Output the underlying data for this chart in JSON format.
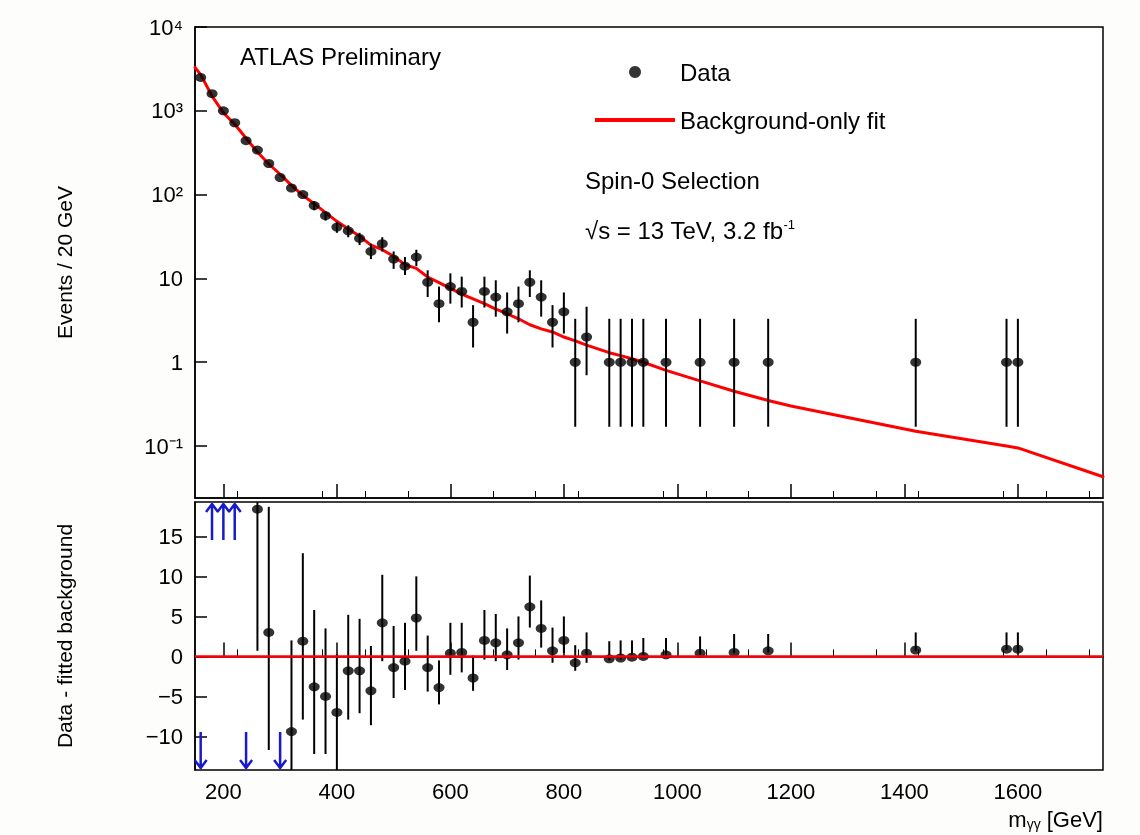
{
  "chart_data": [
    {
      "type": "scatter",
      "ylabel": "Events / 20 GeV",
      "xlim": [
        150,
        1750
      ],
      "xticks": [
        200,
        400,
        600,
        800,
        1000,
        1200,
        1400,
        1600
      ],
      "ylim": [
        0.024,
        10000
      ],
      "yticks": [
        {
          "value": 0.1,
          "label": "10⁻¹"
        },
        1,
        10,
        {
          "value": 100,
          "label": "10²"
        },
        {
          "value": 1000,
          "label": "10³"
        },
        {
          "value": 10000,
          "label": "10⁴"
        }
      ],
      "log": "y",
      "tick_labels": "y",
      "grid": false,
      "legend": "top right",
      "annotations": [
        "ATLAS Preliminary",
        "Spin-0 Selection",
        "√s = 13 TeV, 3.2 fb$^{-1}$"
      ],
      "series": [
        {
          "name": "Data",
          "type": "scatter",
          "color": "#000000",
          "x": [
            160,
            180,
            200,
            220,
            240,
            260,
            280,
            300,
            320,
            340,
            360,
            380,
            400,
            420,
            440,
            460,
            480,
            500,
            520,
            540,
            560,
            580,
            600,
            620,
            640,
            660,
            680,
            700,
            720,
            740,
            760,
            780,
            800,
            820,
            840,
            880,
            900,
            920,
            940,
            980,
            1040,
            1100,
            1160,
            1420,
            1580,
            1600
          ],
          "values": [
            2500,
            1600,
            1000,
            720,
            440,
            340,
            235,
            160,
            120,
            100,
            74,
            56,
            41,
            37,
            30,
            21,
            26,
            17,
            14,
            18,
            9,
            5,
            8,
            7,
            3,
            7,
            6,
            4,
            5,
            9,
            6,
            3,
            4,
            1,
            2,
            1,
            1,
            1,
            1,
            1,
            1,
            1,
            1,
            1,
            1,
            1
          ],
          "errors": [
            null,
            null,
            null,
            null,
            null,
            null,
            null,
            null,
            null,
            null,
            [
              65,
              83
            ],
            [
              49,
              63
            ],
            [
              35,
              47
            ],
            [
              31,
              43
            ],
            [
              25,
              35
            ],
            [
              17,
              26
            ],
            [
              21,
              31
            ],
            [
              13,
              21
            ],
            [
              11,
              18
            ],
            [
              14,
              22
            ],
            [
              6,
              12.5
            ],
            [
              3,
              8
            ],
            [
              5,
              11.5
            ],
            [
              4.5,
              10.5
            ],
            [
              1.5,
              4.8
            ],
            [
              4.5,
              10.5
            ],
            [
              3.5,
              9.5
            ],
            [
              2.2,
              6.8
            ],
            [
              3,
              8
            ],
            [
              6,
              12.5
            ],
            [
              3.5,
              9.5
            ],
            [
              1.5,
              4.8
            ],
            [
              2.2,
              6.8
            ],
            [
              0.17,
              3.3
            ],
            [
              0.7,
              4.6
            ],
            [
              0.17,
              3.3
            ],
            [
              0.17,
              3.3
            ],
            [
              0.17,
              3.3
            ],
            [
              0.17,
              3.3
            ],
            [
              0.17,
              3.3
            ],
            [
              0.17,
              3.3
            ],
            [
              0.17,
              3.3
            ],
            [
              0.17,
              3.3
            ],
            [
              0.17,
              3.3
            ],
            [
              0.17,
              3.3
            ],
            [
              0.17,
              3.3
            ]
          ]
        },
        {
          "name": "Background-only fit",
          "type": "line",
          "color": "#ff0000",
          "x": [
            150,
            160,
            180,
            200,
            220,
            240,
            260,
            280,
            300,
            320,
            340,
            360,
            380,
            400,
            420,
            440,
            460,
            480,
            500,
            520,
            540,
            560,
            580,
            600,
            620,
            640,
            660,
            680,
            700,
            720,
            740,
            760,
            780,
            800,
            820,
            840,
            880,
            900,
            920,
            940,
            980,
            1040,
            1100,
            1160,
            1200,
            1420,
            1580,
            1600,
            1750
          ],
          "values": [
            3300,
            2700,
            1500,
            950,
            690,
            470,
            322,
            232,
            175,
            129,
            98,
            78,
            61,
            48,
            39,
            32,
            25,
            22,
            18.4,
            14.6,
            13.2,
            10.4,
            8.9,
            7.6,
            6.5,
            5.7,
            5.0,
            4.3,
            3.8,
            3.3,
            2.8,
            2.5,
            2.3,
            2.0,
            1.8,
            1.6,
            1.3,
            1.2,
            1.1,
            1.0,
            0.8,
            0.6,
            0.45,
            0.35,
            0.3,
            0.15,
            0.1,
            0.095,
            0.043
          ]
        }
      ]
    },
    {
      "type": "scatter",
      "xlabel": "m$_{γγ}$ [GeV]",
      "ylabel": "Data - fitted background",
      "xlim": [
        150,
        1750
      ],
      "xticks": [
        200,
        400,
        600,
        800,
        1000,
        1200,
        1400,
        1600
      ],
      "ylim": [
        -14.2,
        19.3
      ],
      "yticks": [
        {
          "value": -10,
          "label": "−10"
        },
        {
          "value": -5,
          "label": "−5"
        },
        0,
        5,
        10,
        15
      ],
      "grid": false,
      "legend": false,
      "marker": "circle",
      "ref_lines": [
        {
          "axis": "y",
          "value": 0,
          "color": "#ff0000"
        }
      ],
      "series": [
        {
          "type": "scatter",
          "color": "#000000",
          "x": [
            260,
            280,
            320,
            340,
            360,
            380,
            400,
            420,
            440,
            460,
            480,
            500,
            520,
            540,
            560,
            580,
            600,
            620,
            640,
            660,
            680,
            700,
            720,
            740,
            760,
            780,
            800,
            820,
            840,
            880,
            900,
            920,
            940,
            980,
            1040,
            1100,
            1160,
            1420,
            1580,
            1600
          ],
          "values": [
            18.4,
            3.0,
            -9.4,
            1.9,
            -3.8,
            -5.0,
            -7.0,
            -1.8,
            -1.8,
            -4.3,
            4.2,
            -1.4,
            -0.6,
            4.8,
            -1.4,
            -3.9,
            0.4,
            0.5,
            -2.7,
            2.0,
            1.7,
            0.2,
            1.7,
            6.2,
            3.5,
            0.7,
            2.0,
            -0.8,
            0.4,
            -0.3,
            -0.2,
            -0.1,
            0,
            0.2,
            0.4,
            0.5,
            0.7,
            0.8,
            0.9,
            0.9
          ],
          "errors": [
            [
              0.7,
              19.3
            ],
            [
              -11.7,
              18.7
            ],
            [
              -14.2,
              2.0
            ],
            [
              -7.9,
              12.9
            ],
            [
              -12.2,
              5.8
            ],
            [
              -12.2,
              3.5
            ],
            [
              -14.2,
              0.3
            ],
            [
              -7.9,
              5.2
            ],
            [
              -7.1,
              4.7
            ],
            [
              -8.6,
              1.3
            ],
            [
              -0.6,
              10.2
            ],
            [
              -5.2,
              3.8
            ],
            [
              -4.2,
              4.2
            ],
            [
              0.7,
              10.0
            ],
            [
              -4.4,
              2.6
            ],
            [
              -6.0,
              -0.5
            ],
            [
              -2.3,
              4.2
            ],
            [
              -2.0,
              4.2
            ],
            [
              -4.3,
              0.1
            ],
            [
              -0.4,
              5.8
            ],
            [
              -0.6,
              5.3
            ],
            [
              -1.7,
              3.5
            ],
            [
              -0.4,
              5.0
            ],
            [
              3.6,
              10.1
            ],
            [
              1.1,
              7.0
            ],
            [
              -0.8,
              3.6
            ],
            [
              0.4,
              5.0
            ],
            [
              -1.8,
              1.4
            ],
            [
              -0.8,
              3.0
            ],
            [
              -0.5,
              1.9
            ],
            [
              -0.4,
              2.0
            ],
            [
              -0.2,
              2.0
            ],
            [
              -0.1,
              2.3
            ],
            [
              0,
              2.3
            ],
            [
              0.2,
              2.5
            ],
            [
              0.4,
              2.8
            ],
            [
              0.5,
              2.8
            ],
            [
              0.7,
              3.0
            ],
            [
              0.8,
              3.0
            ],
            [
              0.8,
              3.0
            ]
          ]
        }
      ]
    }
  ]
}
